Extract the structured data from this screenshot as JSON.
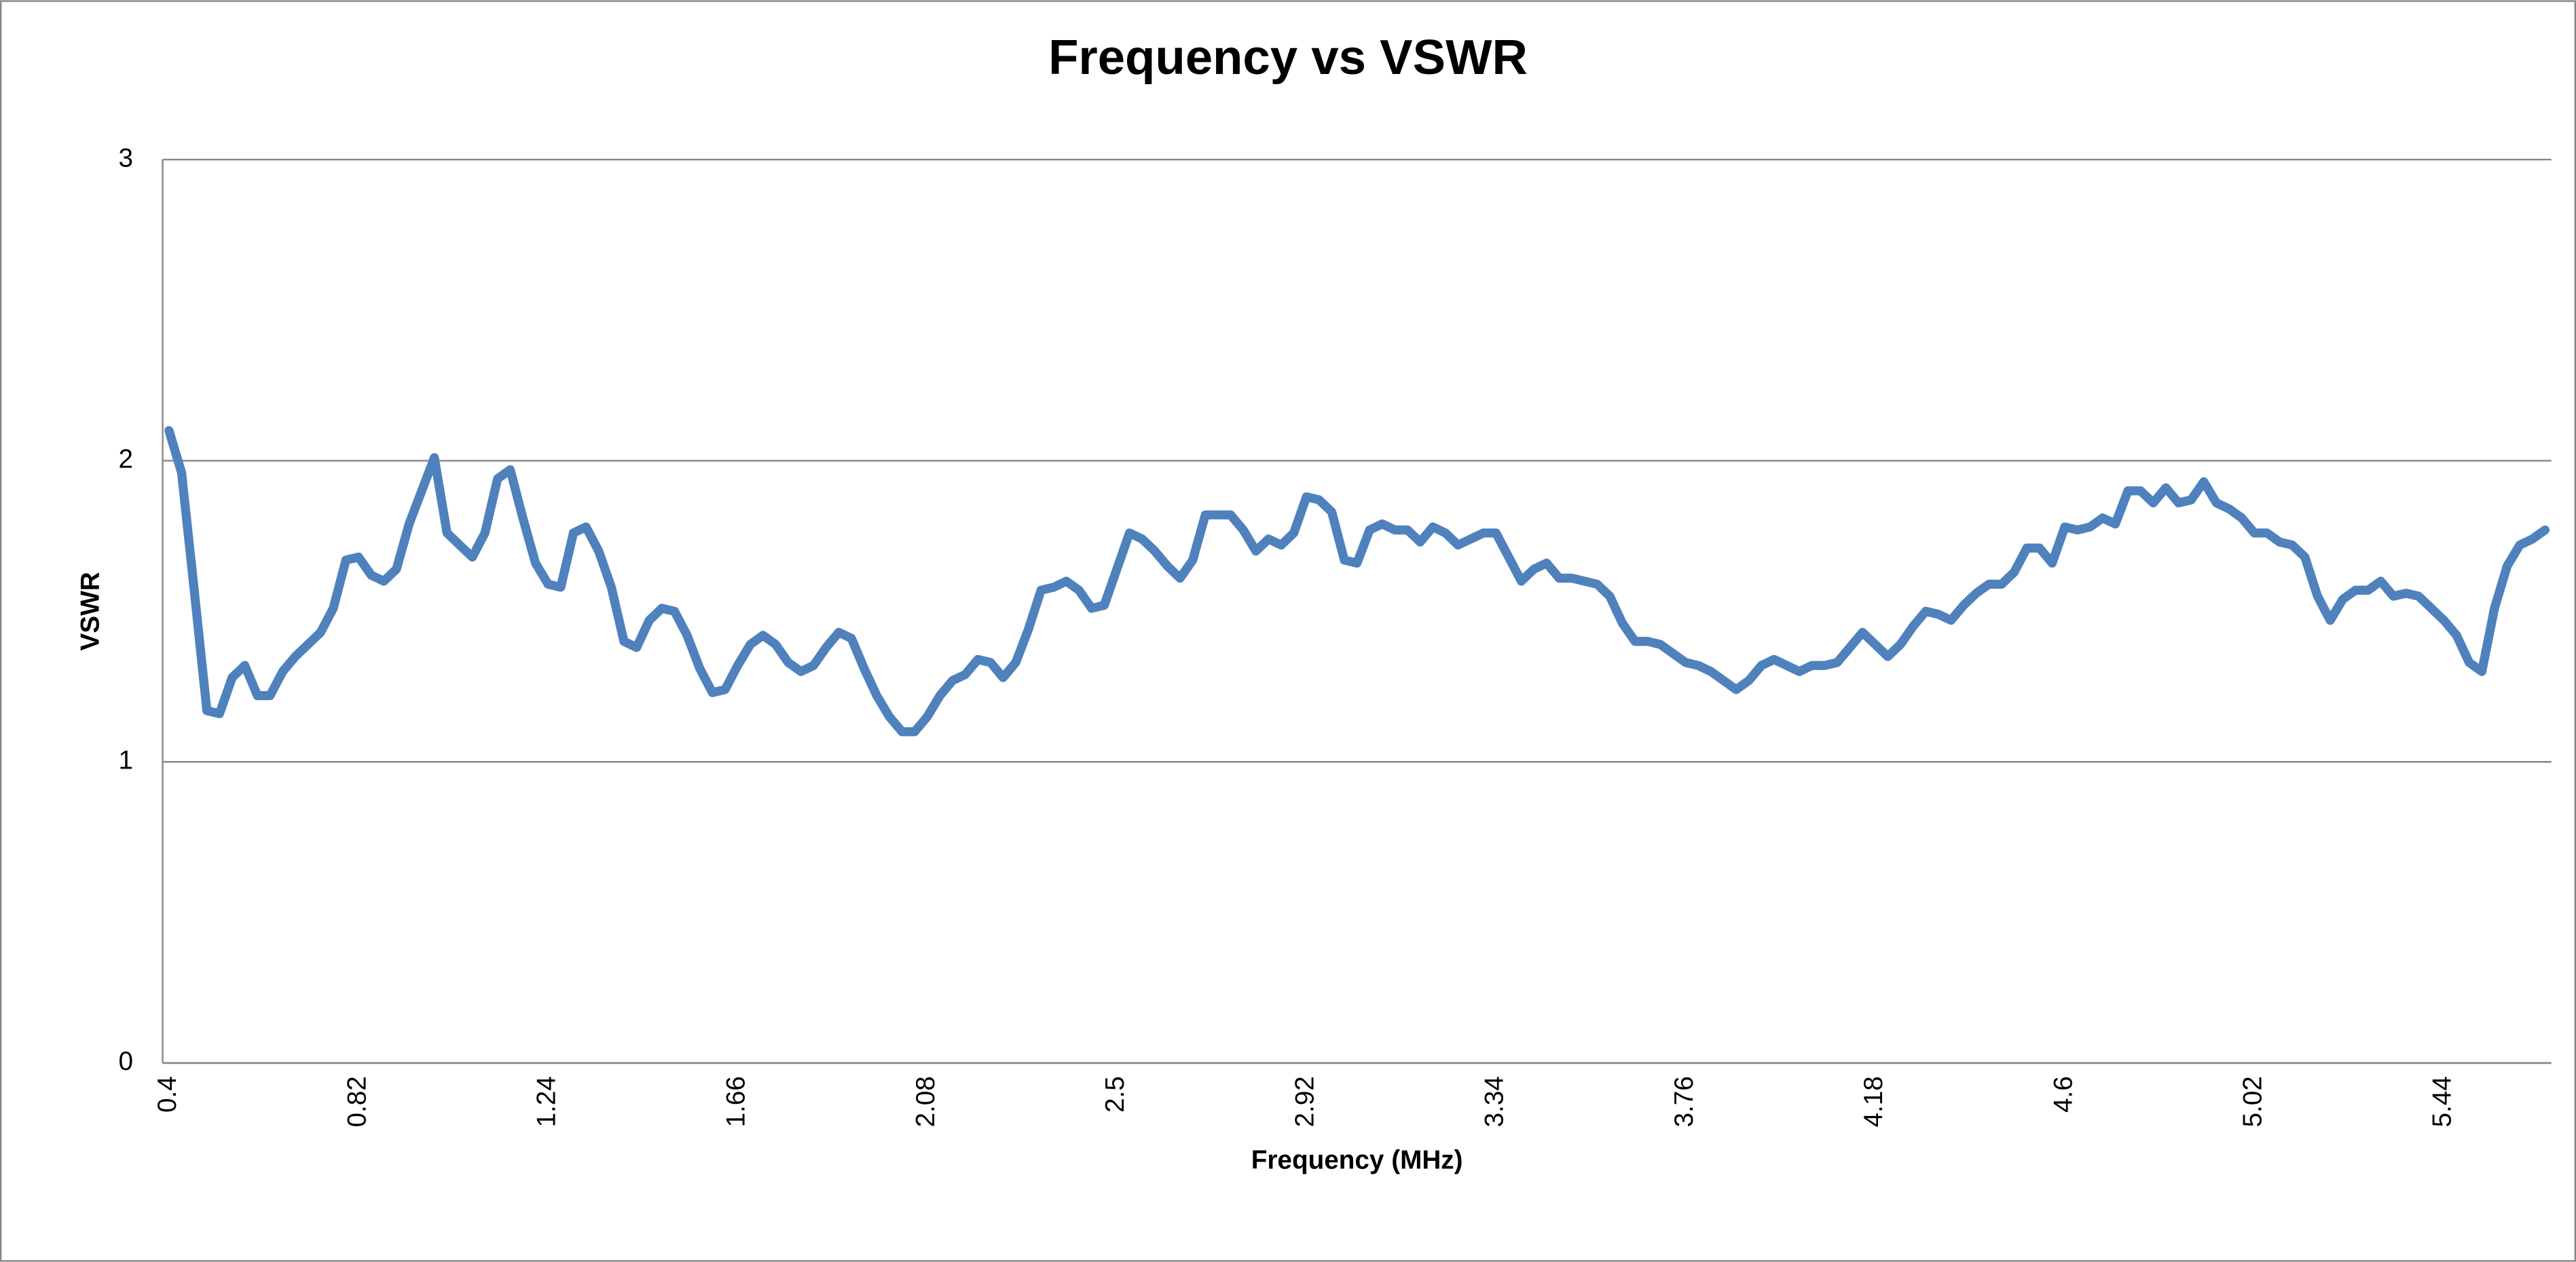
{
  "chart_data": {
    "type": "line",
    "title": "Frequency vs VSWR",
    "x_label": "Frequency (MHz)",
    "y_label": "VSWR",
    "categories": [
      "0.4",
      null,
      null,
      null,
      null,
      null,
      null,
      null,
      null,
      null,
      null,
      null,
      null,
      null,
      null,
      "0.82",
      null,
      null,
      null,
      null,
      null,
      null,
      null,
      null,
      null,
      null,
      null,
      null,
      null,
      null,
      "1.24",
      null,
      null,
      null,
      null,
      null,
      null,
      null,
      null,
      null,
      null,
      null,
      null,
      null,
      null,
      "1.66",
      null,
      null,
      null,
      null,
      null,
      null,
      null,
      null,
      null,
      null,
      null,
      null,
      null,
      null,
      "2.08",
      null,
      null,
      null,
      null,
      null,
      null,
      null,
      null,
      null,
      null,
      null,
      null,
      null,
      null,
      "2.5",
      null,
      null,
      null,
      null,
      null,
      null,
      null,
      null,
      null,
      null,
      null,
      null,
      null,
      null,
      "2.92",
      null,
      null,
      null,
      null,
      null,
      null,
      null,
      null,
      null,
      null,
      null,
      null,
      null,
      null,
      "3.34",
      null,
      null,
      null,
      null,
      null,
      null,
      null,
      null,
      null,
      null,
      null,
      null,
      null,
      null,
      "3.76",
      null,
      null,
      null,
      null,
      null,
      null,
      null,
      null,
      null,
      null,
      null,
      null,
      null,
      null,
      "4.18",
      null,
      null,
      null,
      null,
      null,
      null,
      null,
      null,
      null,
      null,
      null,
      null,
      null,
      null,
      "4.6",
      null,
      null,
      null,
      null,
      null,
      null,
      null,
      null,
      null,
      null,
      null,
      null,
      null,
      null,
      "5.02",
      null,
      null,
      null,
      null,
      null,
      null,
      null,
      null,
      null,
      null,
      null,
      null,
      null,
      null,
      "5.44",
      null,
      null,
      null,
      null,
      null,
      null,
      null,
      null
    ],
    "values": [
      2.1,
      1.96,
      1.57,
      1.17,
      1.16,
      1.28,
      1.32,
      1.22,
      1.22,
      1.3,
      1.35,
      1.39,
      1.43,
      1.51,
      1.67,
      1.68,
      1.62,
      1.6,
      1.64,
      1.79,
      1.9,
      2.01,
      1.76,
      1.72,
      1.68,
      1.76,
      1.94,
      1.97,
      1.81,
      1.66,
      1.59,
      1.58,
      1.76,
      1.78,
      1.7,
      1.58,
      1.4,
      1.38,
      1.47,
      1.51,
      1.5,
      1.42,
      1.31,
      1.23,
      1.24,
      1.32,
      1.39,
      1.42,
      1.39,
      1.33,
      1.3,
      1.32,
      1.38,
      1.43,
      1.41,
      1.31,
      1.22,
      1.15,
      1.1,
      1.1,
      1.15,
      1.22,
      1.27,
      1.29,
      1.34,
      1.33,
      1.28,
      1.33,
      1.44,
      1.57,
      1.58,
      1.6,
      1.57,
      1.51,
      1.52,
      1.64,
      1.76,
      1.74,
      1.7,
      1.65,
      1.61,
      1.67,
      1.82,
      1.82,
      1.82,
      1.77,
      1.7,
      1.74,
      1.72,
      1.76,
      1.88,
      1.87,
      1.83,
      1.67,
      1.66,
      1.77,
      1.79,
      1.77,
      1.77,
      1.73,
      1.78,
      1.76,
      1.72,
      1.74,
      1.76,
      1.76,
      1.68,
      1.6,
      1.64,
      1.66,
      1.61,
      1.61,
      1.6,
      1.59,
      1.55,
      1.46,
      1.4,
      1.4,
      1.39,
      1.36,
      1.33,
      1.32,
      1.3,
      1.27,
      1.24,
      1.27,
      1.32,
      1.34,
      1.32,
      1.3,
      1.32,
      1.32,
      1.33,
      1.38,
      1.43,
      1.39,
      1.35,
      1.39,
      1.45,
      1.5,
      1.49,
      1.47,
      1.52,
      1.56,
      1.59,
      1.59,
      1.63,
      1.71,
      1.71,
      1.66,
      1.78,
      1.77,
      1.78,
      1.81,
      1.79,
      1.9,
      1.9,
      1.86,
      1.91,
      1.86,
      1.87,
      1.93,
      1.86,
      1.84,
      1.81,
      1.76,
      1.76,
      1.73,
      1.72,
      1.68,
      1.55,
      1.47,
      1.54,
      1.57,
      1.57,
      1.6,
      1.55,
      1.56,
      1.55,
      1.51,
      1.47,
      1.42,
      1.33,
      1.3,
      1.51,
      1.65,
      1.72,
      1.74,
      1.77
    ],
    "color": "#4f81bd",
    "ylim": [
      0,
      3
    ],
    "yticks": [
      0,
      1,
      2,
      3
    ],
    "grid": true
  }
}
